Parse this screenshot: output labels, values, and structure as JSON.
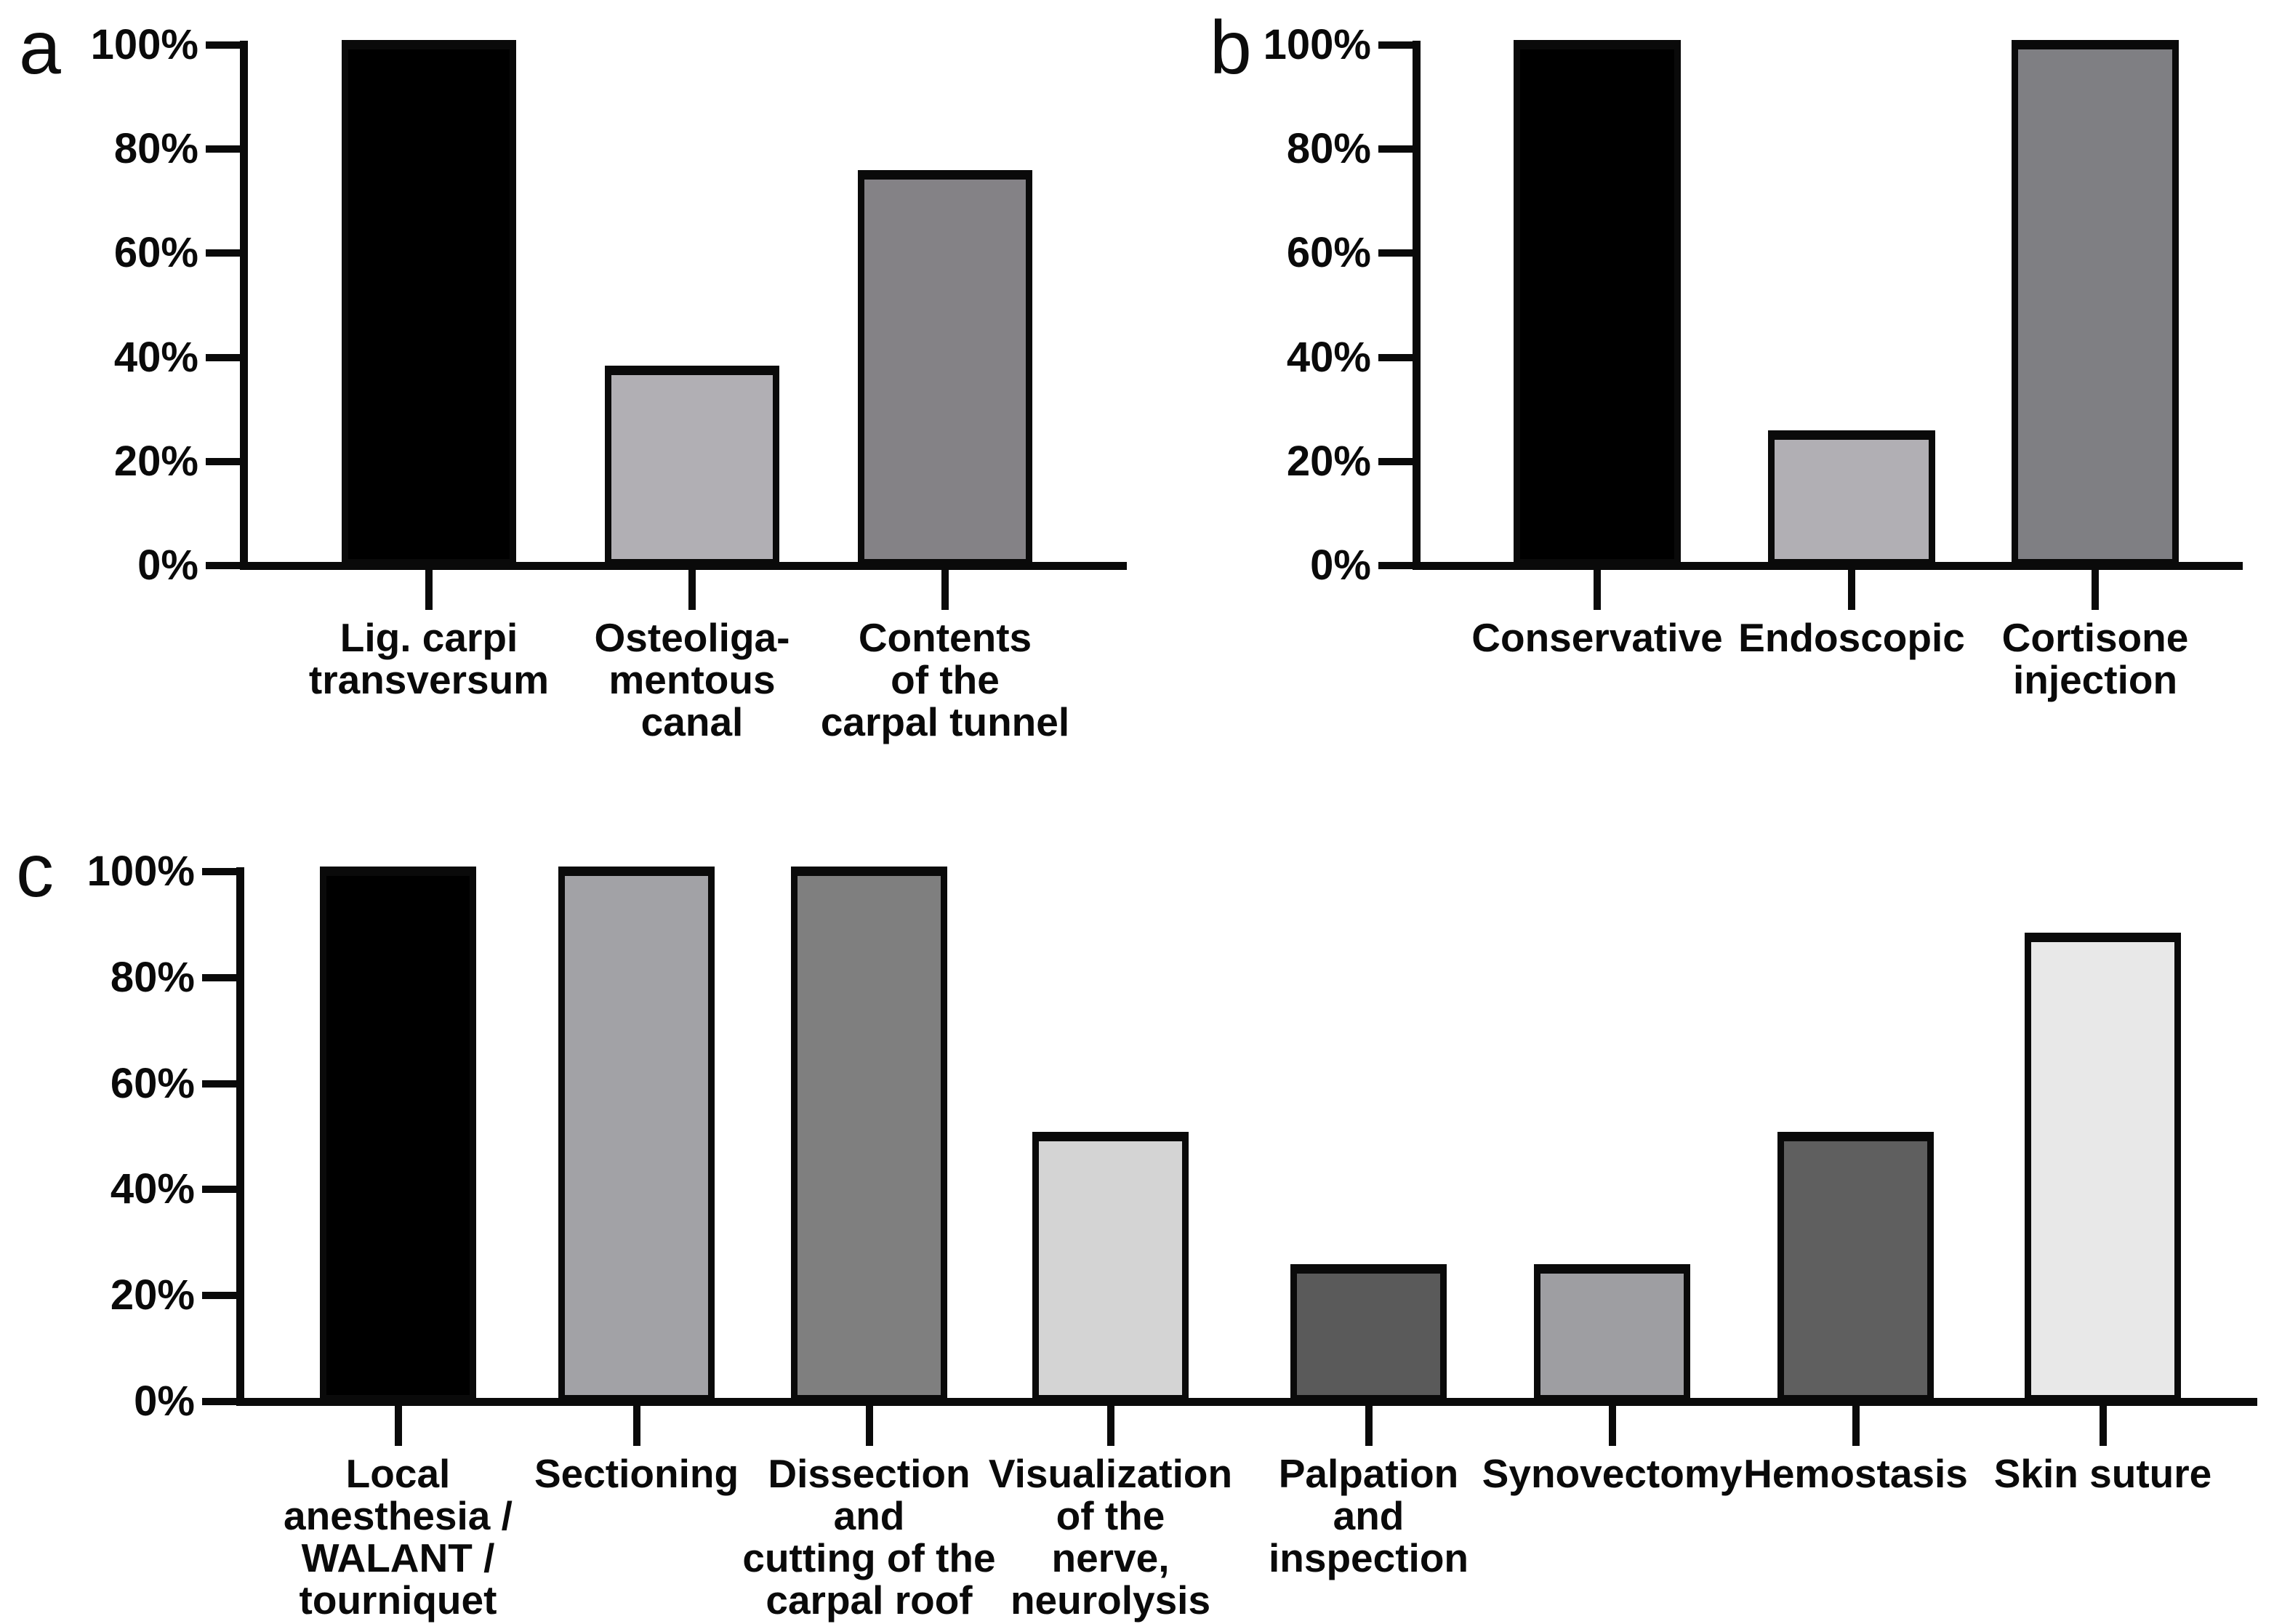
{
  "figure": {
    "background": "#ffffff",
    "axis_color": "#0a0a0a",
    "panel_letters": [
      "a",
      "b",
      "c"
    ]
  },
  "chart_data": [
    {
      "type": "bar",
      "panel": "a",
      "title": "",
      "xlabel": "",
      "ylabel": "",
      "ylim": [
        0,
        100
      ],
      "grid": false,
      "legend": null,
      "y_ticks": [
        {
          "label": "100%",
          "value": 100
        },
        {
          "label": "80%",
          "value": 80
        },
        {
          "label": "60%",
          "value": 60
        },
        {
          "label": "40%",
          "value": 40
        },
        {
          "label": "20%",
          "value": 20
        },
        {
          "label": "0%",
          "value": 0
        }
      ],
      "categories": [
        "Lig. carpi\ntransversum",
        "Osteoliga-\nmentous\ncanal",
        "Contents\nof the\ncarpal tunnel"
      ],
      "values": [
        100,
        37.5,
        75
      ],
      "colors": [
        "#000000",
        "#b1afb4",
        "#848286"
      ]
    },
    {
      "type": "bar",
      "panel": "b",
      "title": "",
      "xlabel": "",
      "ylabel": "",
      "ylim": [
        0,
        100
      ],
      "grid": false,
      "legend": null,
      "y_ticks": [
        {
          "label": "100%",
          "value": 100
        },
        {
          "label": "80%",
          "value": 80
        },
        {
          "label": "60%",
          "value": 60
        },
        {
          "label": "40%",
          "value": 40
        },
        {
          "label": "20%",
          "value": 20
        },
        {
          "label": "0%",
          "value": 0
        }
      ],
      "categories": [
        "Conservative",
        "Endoscopic",
        "Cortisone\ninjection"
      ],
      "values": [
        100,
        25,
        100
      ],
      "colors": [
        "#000000",
        "#b1afb4",
        "#7f7f83"
      ]
    },
    {
      "type": "bar",
      "panel": "c",
      "title": "",
      "xlabel": "",
      "ylabel": "",
      "ylim": [
        0,
        100
      ],
      "grid": false,
      "legend": null,
      "y_ticks": [
        {
          "label": "100%",
          "value": 100
        },
        {
          "label": "80%",
          "value": 80
        },
        {
          "label": "60%",
          "value": 60
        },
        {
          "label": "40%",
          "value": 40
        },
        {
          "label": "20%",
          "value": 20
        },
        {
          "label": "0%",
          "value": 0
        }
      ],
      "categories": [
        "Local\nanesthesia /\nWALANT /\ntourniquet",
        "Sectioning",
        "Dissection\nand\ncutting of the\ncarpal roof",
        "Visualization\nof the\nnerve,\nneurolysis",
        "Palpation\nand\ninspection",
        "Synovectomy",
        "Hemostasis",
        "Skin suture"
      ],
      "values": [
        100,
        100,
        100,
        50,
        25,
        25,
        50,
        87.5
      ],
      "colors": [
        "#000000",
        "#a2a2a6",
        "#7f7f7f",
        "#d4d4d4",
        "#5a5a5a",
        "#9e9ea2",
        "#5f5f5f",
        "#e8e8e8"
      ]
    }
  ]
}
